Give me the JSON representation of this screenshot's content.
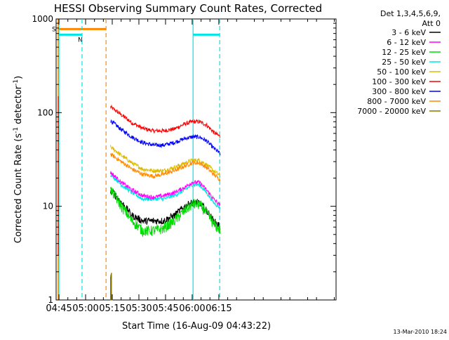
{
  "chart_data": {
    "type": "line",
    "title": "HESSI Observing Summary Count Rates, Corrected",
    "xlabel": "Start Time (16-Aug-09 04:43:22)",
    "ylabel_main": "Corrected Count Rate (s",
    "ylabel_sup1": "-1",
    "ylabel_mid": " detector",
    "ylabel_sup2": "-1",
    "ylabel_end": ")",
    "yscale": "log",
    "ylim": [
      1,
      1000
    ],
    "xlim_minutes": [
      43.4,
      201
    ],
    "x_ticks": [
      {
        "minute": 45,
        "label": "04:45"
      },
      {
        "minute": 60,
        "label": "05:00"
      },
      {
        "minute": 75,
        "label": "05:15"
      },
      {
        "minute": 90,
        "label": "05:30"
      },
      {
        "minute": 105,
        "label": "05:45"
      },
      {
        "minute": 120,
        "label": "06:00"
      },
      {
        "minute": 135,
        "label": "06:15"
      }
    ],
    "y_ticks": [
      {
        "value": 1,
        "label": "1"
      },
      {
        "value": 10,
        "label": "10"
      },
      {
        "value": 100,
        "label": "100"
      },
      {
        "value": 1000,
        "label": "1000"
      }
    ],
    "legend": {
      "header1": "Det 1,3,4,5,6,9,",
      "header2": "Att 0",
      "entries": [
        {
          "label": "3 - 6 keV",
          "color": "#000000"
        },
        {
          "label": "6 - 12 keV",
          "color": "#ff00ff"
        },
        {
          "label": "12 - 25 keV",
          "color": "#00dd00"
        },
        {
          "label": "25 - 50 keV",
          "color": "#00e6e6"
        },
        {
          "label": "50 - 100 keV",
          "color": "#ddbb00"
        },
        {
          "label": "100 - 300 keV",
          "color": "#ff0000"
        },
        {
          "label": "300 - 800 keV",
          "color": "#0000ff"
        },
        {
          "label": "800 - 7000 keV",
          "color": "#ff8800"
        },
        {
          "label": "7000 - 20000 keV",
          "color": "#887700"
        }
      ]
    },
    "flags": [
      {
        "label": "S",
        "color": "#ff8800",
        "start_minute": 44.2,
        "end_minute": 71.5,
        "value": 780
      },
      {
        "label": "N",
        "color": "#00e6e6",
        "start_minute": 44.2,
        "end_minute": 58.0,
        "value": 680
      },
      {
        "label": "",
        "color": "#00e6e6",
        "start_minute": 120.5,
        "end_minute": 135.5,
        "value": 680
      }
    ],
    "vertical_markers": [
      {
        "minute": 44.5,
        "color": "#ff8800",
        "style": "solid"
      },
      {
        "minute": 45.0,
        "color": "#00e6e6",
        "style": "solid"
      },
      {
        "minute": 58.0,
        "color": "#00e6e6",
        "style": "dashed"
      },
      {
        "minute": 71.5,
        "color": "#ff8800",
        "style": "dashed"
      },
      {
        "minute": 120.5,
        "color": "#00e6e6",
        "style": "solid"
      },
      {
        "minute": 135.5,
        "color": "#00e6e6",
        "style": "dashed"
      }
    ],
    "series_time_minutes": [
      74,
      80,
      86,
      92,
      98,
      104,
      110,
      116,
      120,
      124,
      128,
      132,
      136
    ],
    "series": [
      {
        "name": "100 - 300 keV",
        "color": "#ff0000",
        "values": [
          115,
          95,
          78,
          68,
          64,
          64,
          67,
          76,
          80,
          80,
          74,
          62,
          55
        ]
      },
      {
        "name": "300 - 800 keV",
        "color": "#0000ff",
        "values": [
          82,
          66,
          55,
          48,
          45,
          45,
          48,
          53,
          55,
          55,
          50,
          42,
          36
        ]
      },
      {
        "name": "50 - 100 keV",
        "color": "#ddbb00",
        "values": [
          43,
          35,
          29,
          25,
          24,
          24,
          26,
          29,
          31,
          31,
          28,
          24,
          21
        ]
      },
      {
        "name": "800 - 7000 keV",
        "color": "#ff8800",
        "values": [
          36,
          30,
          25,
          22,
          21,
          22,
          24,
          27,
          29,
          29,
          26,
          22,
          19
        ]
      },
      {
        "name": "25 - 50 keV",
        "color": "#00e6e6",
        "values": [
          22,
          17,
          14,
          12,
          12,
          12,
          13,
          15,
          17,
          17,
          14,
          11,
          9.5
        ]
      },
      {
        "name": "6 - 12 keV",
        "color": "#ff00ff",
        "values": [
          23,
          18,
          15,
          13,
          12.5,
          13,
          14,
          16,
          18,
          18,
          15,
          12,
          10
        ]
      },
      {
        "name": "3 - 6 keV",
        "color": "#000000",
        "values": [
          15,
          11,
          8,
          7,
          7,
          7,
          8,
          10,
          11,
          11,
          9,
          7,
          6
        ]
      },
      {
        "name": "12 - 25 keV",
        "color": "#00dd00",
        "values": [
          15,
          10,
          7,
          5.5,
          5.5,
          5.8,
          7,
          9,
          10.5,
          10.5,
          8.5,
          6.5,
          5.5
        ]
      },
      {
        "name": "7000 - 20000 keV",
        "color": "#887700",
        "values": [
          2.0,
          1.0,
          1.0,
          1.0,
          1.0,
          1.0,
          1.0,
          1.0,
          1.0,
          1.0,
          1.0,
          1.0,
          1.0
        ]
      }
    ],
    "footer_date": "13-Mar-2010 18:24"
  }
}
